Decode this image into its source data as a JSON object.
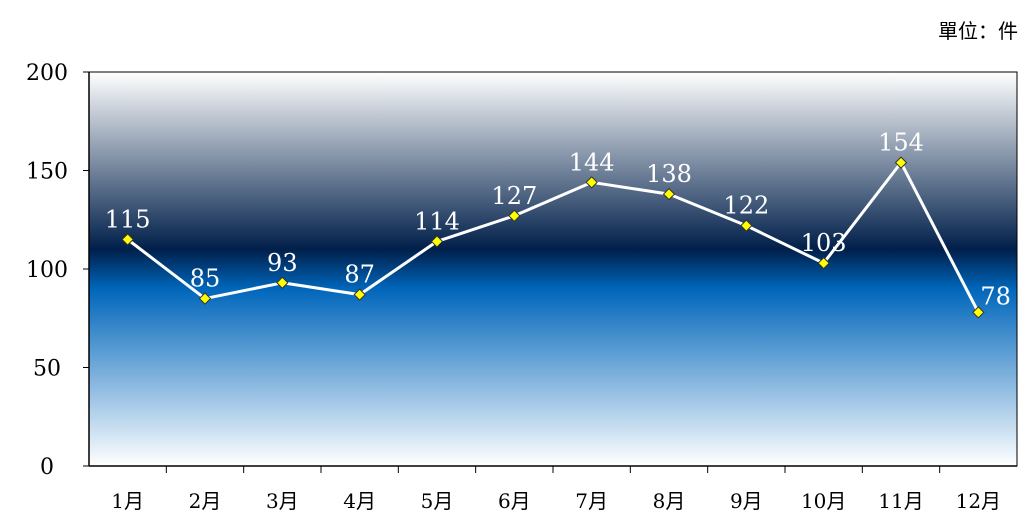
{
  "chart_data": {
    "type": "line",
    "unit_label": "單位：件",
    "categories": [
      "1月",
      "2月",
      "3月",
      "4月",
      "5月",
      "6月",
      "7月",
      "8月",
      "9月",
      "10月",
      "11月",
      "12月"
    ],
    "series": [
      {
        "values": [
          115,
          85,
          93,
          87,
          114,
          127,
          144,
          138,
          122,
          103,
          154,
          78
        ]
      }
    ],
    "ylim": [
      0,
      200
    ],
    "yticks": [
      "0",
      "50",
      "100",
      "150",
      "200"
    ],
    "data_labels": [
      "115",
      "85",
      "93",
      "87",
      "114",
      "127",
      "144",
      "138",
      "122",
      "103",
      "154",
      "78"
    ],
    "grid": false,
    "legend": "none",
    "colors": {
      "line": "#ffffff",
      "marker_fill": "#ffff00",
      "marker_stroke": "#333333",
      "bg_top": "#ffffff",
      "bg_dark": "#001f4a",
      "bg_mid": "#0066bb",
      "bg_bottom": "#ffffff"
    }
  }
}
